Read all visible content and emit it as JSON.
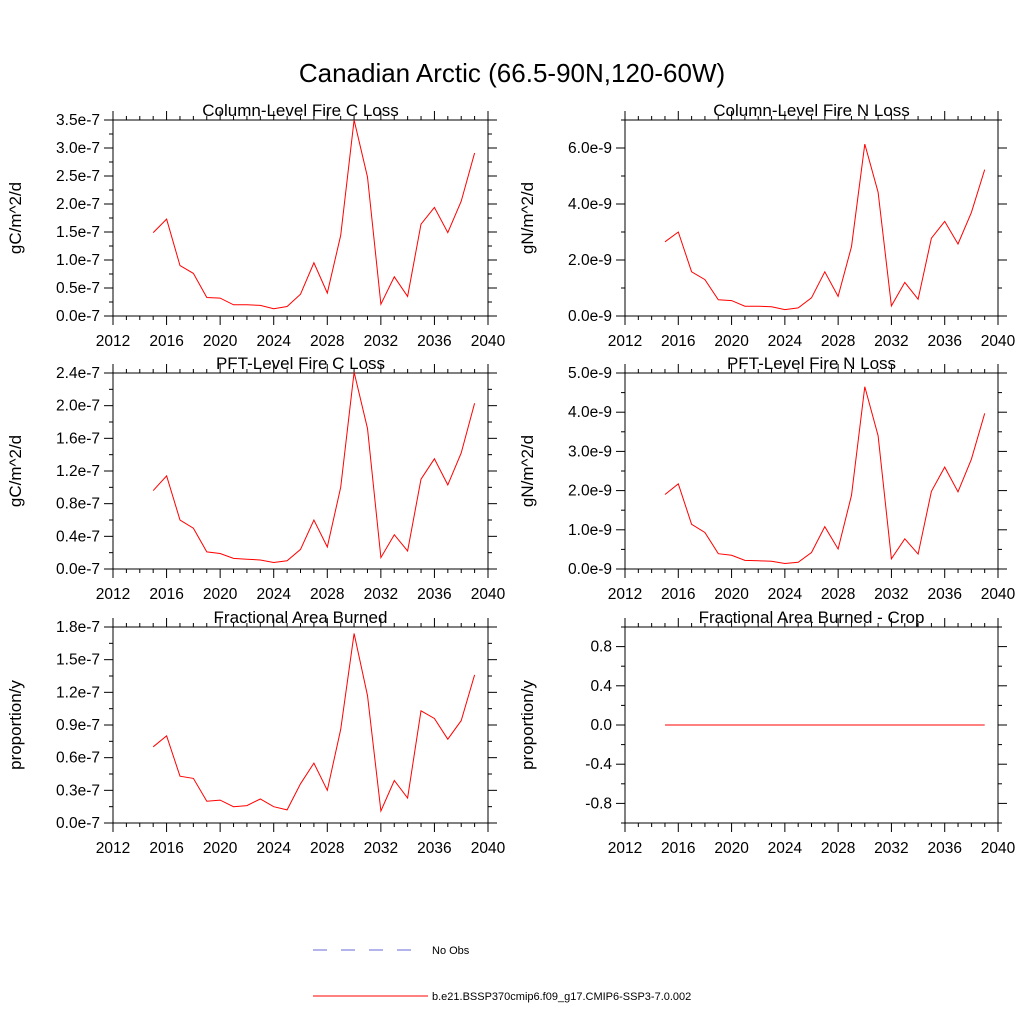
{
  "figure": {
    "title": "Canadian Arctic (66.5-90N,120-60W)"
  },
  "legend": {
    "entries": [
      {
        "label": "No Obs",
        "color": "#6a6ad8",
        "style": "dashed"
      },
      {
        "label": "b.e21.BSSP370cmip6.f09_g17.CMIP6-SSP3-7.0.002",
        "color": "#ff0000",
        "style": "solid"
      }
    ]
  },
  "chart_data": [
    {
      "id": "col-c",
      "type": "line",
      "title": "Column-Level Fire C Loss",
      "xlabel": "",
      "ylabel": "gC/m^2/d",
      "xlim": [
        2012,
        2040
      ],
      "ylim": [
        0,
        3.5e-07
      ],
      "xticks": [
        2012,
        2016,
        2020,
        2024,
        2028,
        2032,
        2036,
        2040
      ],
      "xtick_labels": [
        "2012",
        "2016",
        "2020",
        "2024",
        "2028",
        "2032",
        "2036",
        "2040"
      ],
      "yticks": [
        0,
        5e-08,
        1e-07,
        1.5e-07,
        2e-07,
        2.5e-07,
        3e-07,
        3.5e-07
      ],
      "ytick_labels": [
        "0.0e-7",
        "0.5e-7",
        "1.0e-7",
        "1.5e-7",
        "2.0e-7",
        "2.5e-7",
        "3.0e-7",
        "3.5e-7"
      ],
      "series": [
        {
          "name": "b.e21.BSSP370cmip6.f09_g17.CMIP6-SSP3-7.0.002",
          "color": "#ff0000",
          "x": [
            2015,
            2016,
            2017,
            2018,
            2019,
            2020,
            2021,
            2022,
            2023,
            2024,
            2025,
            2026,
            2027,
            2028,
            2029,
            2030,
            2031,
            2032,
            2033,
            2034,
            2035,
            2036,
            2037,
            2038,
            2039
          ],
          "values": [
            1.49e-07,
            1.73e-07,
            9e-08,
            7.6e-08,
            3.3e-08,
            3.2e-08,
            2e-08,
            2e-08,
            1.9e-08,
            1.3e-08,
            1.7e-08,
            3.9e-08,
            9.5e-08,
            4.1e-08,
            1.44e-07,
            3.5e-07,
            2.48e-07,
            2.1e-08,
            7e-08,
            3.5e-08,
            1.64e-07,
            1.94e-07,
            1.49e-07,
            2.05e-07,
            2.91e-07
          ]
        }
      ]
    },
    {
      "id": "col-n",
      "type": "line",
      "title": "Column-Level Fire N Loss",
      "xlabel": "",
      "ylabel": "gN/m^2/d",
      "xlim": [
        2012,
        2040
      ],
      "ylim": [
        0,
        7e-09
      ],
      "xticks": [
        2012,
        2016,
        2020,
        2024,
        2028,
        2032,
        2036,
        2040
      ],
      "xtick_labels": [
        "2012",
        "2016",
        "2020",
        "2024",
        "2028",
        "2032",
        "2036",
        "2040"
      ],
      "yticks": [
        0,
        2e-09,
        4e-09,
        6e-09
      ],
      "ytick_labels": [
        "0.0e-9",
        "2.0e-9",
        "4.0e-9",
        "6.0e-9"
      ],
      "series": [
        {
          "name": "b.e21.BSSP370cmip6.f09_g17.CMIP6-SSP3-7.0.002",
          "color": "#ff0000",
          "x": [
            2015,
            2016,
            2017,
            2018,
            2019,
            2020,
            2021,
            2022,
            2023,
            2024,
            2025,
            2026,
            2027,
            2028,
            2029,
            2030,
            2031,
            2032,
            2033,
            2034,
            2035,
            2036,
            2037,
            2038,
            2039
          ],
          "values": [
            2.65e-09,
            3e-09,
            1.58e-09,
            1.3e-09,
            5.8e-10,
            5.5e-10,
            3.5e-10,
            3.5e-10,
            3.3e-10,
            2.3e-10,
            2.9e-10,
            6.5e-10,
            1.58e-09,
            7e-10,
            2.48e-09,
            6.14e-09,
            4.42e-09,
            3.6e-10,
            1.2e-09,
            6e-10,
            2.78e-09,
            3.38e-09,
            2.57e-09,
            3.7e-09,
            5.23e-09
          ]
        }
      ]
    },
    {
      "id": "pft-c",
      "type": "line",
      "title": "PFT-Level Fire C Loss",
      "xlabel": "",
      "ylabel": "gC/m^2/d",
      "xlim": [
        2012,
        2040
      ],
      "ylim": [
        0,
        2.4e-07
      ],
      "xticks": [
        2012,
        2016,
        2020,
        2024,
        2028,
        2032,
        2036,
        2040
      ],
      "xtick_labels": [
        "2012",
        "2016",
        "2020",
        "2024",
        "2028",
        "2032",
        "2036",
        "2040"
      ],
      "yticks": [
        0,
        4e-08,
        8e-08,
        1.2e-07,
        1.6e-07,
        2e-07,
        2.4e-07
      ],
      "ytick_labels": [
        "0.0e-7",
        "0.4e-7",
        "0.8e-7",
        "1.2e-7",
        "1.6e-7",
        "2.0e-7",
        "2.4e-7"
      ],
      "series": [
        {
          "name": "b.e21.BSSP370cmip6.f09_g17.CMIP6-SSP3-7.0.002",
          "color": "#ff0000",
          "x": [
            2015,
            2016,
            2017,
            2018,
            2019,
            2020,
            2021,
            2022,
            2023,
            2024,
            2025,
            2026,
            2027,
            2028,
            2029,
            2030,
            2031,
            2032,
            2033,
            2034,
            2035,
            2036,
            2037,
            2038,
            2039
          ],
          "values": [
            9.6e-08,
            1.14e-07,
            6e-08,
            5e-08,
            2.1e-08,
            1.9e-08,
            1.3e-08,
            1.2e-08,
            1.1e-08,
            8e-09,
            1e-08,
            2.4e-08,
            6e-08,
            2.7e-08,
            1e-07,
            2.41e-07,
            1.72e-07,
            1.4e-08,
            4.2e-08,
            2.2e-08,
            1.1e-07,
            1.35e-07,
            1.03e-07,
            1.42e-07,
            2.03e-07
          ]
        }
      ]
    },
    {
      "id": "pft-n",
      "type": "line",
      "title": "PFT-Level Fire N Loss",
      "xlabel": "",
      "ylabel": "gN/m^2/d",
      "xlim": [
        2012,
        2040
      ],
      "ylim": [
        0,
        5e-09
      ],
      "xticks": [
        2012,
        2016,
        2020,
        2024,
        2028,
        2032,
        2036,
        2040
      ],
      "xtick_labels": [
        "2012",
        "2016",
        "2020",
        "2024",
        "2028",
        "2032",
        "2036",
        "2040"
      ],
      "yticks": [
        0,
        1e-09,
        2e-09,
        3e-09,
        4e-09,
        5e-09
      ],
      "ytick_labels": [
        "0.0e-9",
        "1.0e-9",
        "2.0e-9",
        "3.0e-9",
        "4.0e-9",
        "5.0e-9"
      ],
      "series": [
        {
          "name": "b.e21.BSSP370cmip6.f09_g17.CMIP6-SSP3-7.0.002",
          "color": "#ff0000",
          "x": [
            2015,
            2016,
            2017,
            2018,
            2019,
            2020,
            2021,
            2022,
            2023,
            2024,
            2025,
            2026,
            2027,
            2028,
            2029,
            2030,
            2031,
            2032,
            2033,
            2034,
            2035,
            2036,
            2037,
            2038,
            2039
          ],
          "values": [
            1.9e-09,
            2.17e-09,
            1.14e-09,
            9.3e-10,
            3.9e-10,
            3.5e-10,
            2.2e-10,
            2.1e-10,
            2e-10,
            1.4e-10,
            1.7e-10,
            4.2e-10,
            1.08e-09,
            5.1e-10,
            1.88e-09,
            4.65e-09,
            3.4e-09,
            2.6e-10,
            7.7e-10,
            3.8e-10,
            1.98e-09,
            2.6e-09,
            1.97e-09,
            2.8e-09,
            3.97e-09
          ]
        }
      ]
    },
    {
      "id": "fab",
      "type": "line",
      "title": "Fractional Area Burned",
      "xlabel": "",
      "ylabel": "proportion/y",
      "xlim": [
        2012,
        2040
      ],
      "ylim": [
        0,
        1.8e-07
      ],
      "xticks": [
        2012,
        2016,
        2020,
        2024,
        2028,
        2032,
        2036,
        2040
      ],
      "xtick_labels": [
        "2012",
        "2016",
        "2020",
        "2024",
        "2028",
        "2032",
        "2036",
        "2040"
      ],
      "yticks": [
        0,
        3e-08,
        6e-08,
        9e-08,
        1.2e-07,
        1.5e-07,
        1.8e-07
      ],
      "ytick_labels": [
        "0.0e-7",
        "0.3e-7",
        "0.6e-7",
        "0.9e-7",
        "1.2e-7",
        "1.5e-7",
        "1.8e-7"
      ],
      "series": [
        {
          "name": "b.e21.BSSP370cmip6.f09_g17.CMIP6-SSP3-7.0.002",
          "color": "#ff0000",
          "x": [
            2015,
            2016,
            2017,
            2018,
            2019,
            2020,
            2021,
            2022,
            2023,
            2024,
            2025,
            2026,
            2027,
            2028,
            2029,
            2030,
            2031,
            2032,
            2033,
            2034,
            2035,
            2036,
            2037,
            2038,
            2039
          ],
          "values": [
            7e-08,
            8e-08,
            4.3e-08,
            4.1e-08,
            2e-08,
            2.1e-08,
            1.5e-08,
            1.6e-08,
            2.2e-08,
            1.5e-08,
            1.2e-08,
            3.6e-08,
            5.5e-08,
            3e-08,
            8.6e-08,
            1.74e-07,
            1.17e-07,
            1.1e-08,
            3.9e-08,
            2.3e-08,
            1.03e-07,
            9.6e-08,
            7.7e-08,
            9.4e-08,
            1.36e-07
          ]
        }
      ]
    },
    {
      "id": "fab-crop",
      "type": "line",
      "title": "Fractional Area Burned - Crop",
      "xlabel": "",
      "ylabel": "proportion/y",
      "xlim": [
        2012,
        2040
      ],
      "ylim": [
        -1.0,
        1.0
      ],
      "xticks": [
        2012,
        2016,
        2020,
        2024,
        2028,
        2032,
        2036,
        2040
      ],
      "xtick_labels": [
        "2012",
        "2016",
        "2020",
        "2024",
        "2028",
        "2032",
        "2036",
        "2040"
      ],
      "yticks": [
        -0.8,
        -0.4,
        0.0,
        0.4,
        0.8
      ],
      "ytick_labels": [
        "-0.8",
        "-0.4",
        "0.0",
        "0.4",
        "0.8"
      ],
      "series": [
        {
          "name": "b.e21.BSSP370cmip6.f09_g17.CMIP6-SSP3-7.0.002",
          "color": "#ff0000",
          "x": [
            2015,
            2016,
            2017,
            2018,
            2019,
            2020,
            2021,
            2022,
            2023,
            2024,
            2025,
            2026,
            2027,
            2028,
            2029,
            2030,
            2031,
            2032,
            2033,
            2034,
            2035,
            2036,
            2037,
            2038,
            2039
          ],
          "values": [
            0,
            0,
            0,
            0,
            0,
            0,
            0,
            0,
            0,
            0,
            0,
            0,
            0,
            0,
            0,
            0,
            0,
            0,
            0,
            0,
            0,
            0,
            0,
            0,
            0
          ]
        }
      ]
    }
  ]
}
